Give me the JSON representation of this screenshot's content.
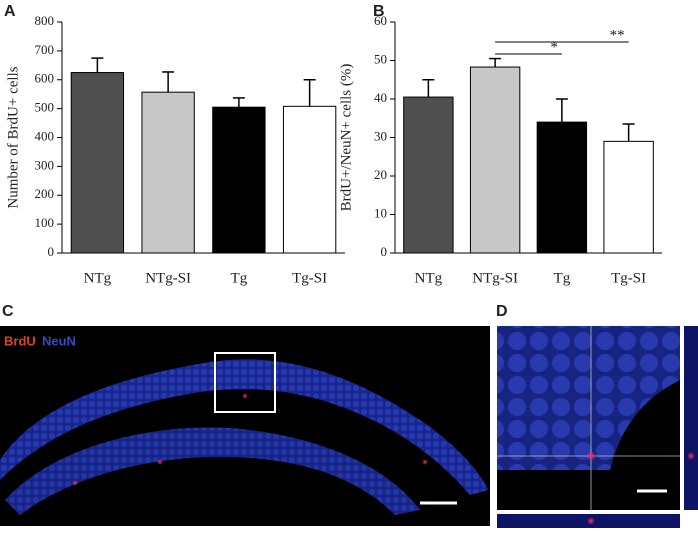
{
  "chart_data": [
    {
      "type": "bar",
      "panel_label": "A",
      "y_label": "Number of BrdU+ cells",
      "categories": [
        "NTg",
        "NTg-SI",
        "Tg",
        "Tg-SI"
      ],
      "values": [
        625,
        557,
        505,
        508
      ],
      "errors": [
        50,
        70,
        32,
        92
      ],
      "colors": [
        "#4f4f4f",
        "#c8c8c8",
        "#000000",
        "#ffffff"
      ],
      "ylim": [
        0,
        800
      ],
      "yticks": [
        0,
        100,
        200,
        300,
        400,
        500,
        600,
        700,
        800
      ]
    },
    {
      "type": "bar",
      "panel_label": "B",
      "y_label": "BrdU+/NeuN+ cells (%)",
      "categories": [
        "NTg",
        "NTg-SI",
        "Tg",
        "Tg-SI"
      ],
      "values": [
        40.5,
        48.3,
        34,
        29
      ],
      "errors": [
        4.5,
        2.2,
        6,
        4.5
      ],
      "colors": [
        "#4f4f4f",
        "#c8c8c8",
        "#000000",
        "#ffffff"
      ],
      "ylim": [
        0,
        60
      ],
      "yticks": [
        0,
        10,
        20,
        30,
        40,
        50,
        60
      ],
      "annotations": [
        {
          "text": "*",
          "between": [
            "NTg-SI",
            "Tg"
          ]
        },
        {
          "text": "**",
          "between": [
            "NTg-SI",
            "Tg-SI"
          ]
        }
      ]
    }
  ],
  "images": {
    "C": {
      "panel_label": "C",
      "stain_red": "BrdU",
      "stain_blue": "NeuN"
    },
    "D": {
      "panel_label": "D"
    }
  }
}
